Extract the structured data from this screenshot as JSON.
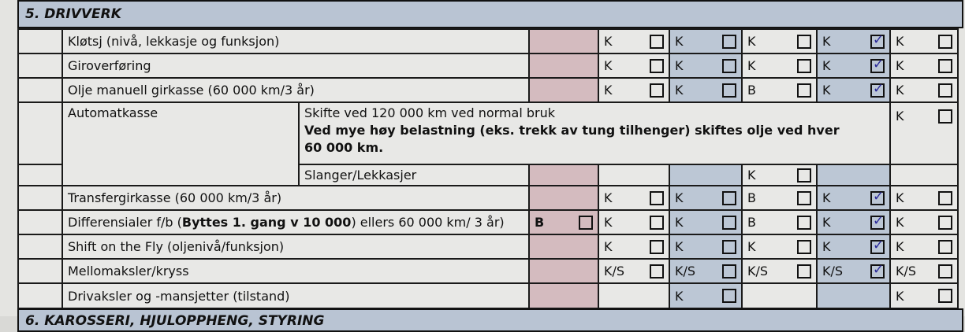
{
  "section_title": "5. DRIVVERK",
  "next_section_title": "6. KAROSSERI, HJULOPPHENG, STYRING",
  "rows": [
    {
      "label": "Kløtsj (nivå, lekkasje og funksjon)",
      "cols": [
        {
          "code": "K",
          "checked": false
        },
        {
          "code": "K",
          "checked": false
        },
        {
          "code": "K",
          "checked": false
        },
        {
          "code": "K",
          "checked": true
        },
        {
          "code": "K",
          "checked": false
        }
      ]
    },
    {
      "label": "Giroverføring",
      "cols": [
        {
          "code": "K",
          "checked": false
        },
        {
          "code": "K",
          "checked": false
        },
        {
          "code": "K",
          "checked": false
        },
        {
          "code": "K",
          "checked": true
        },
        {
          "code": "K",
          "checked": false
        }
      ]
    },
    {
      "label": "Olje manuell girkasse (60 000 km/3 år)",
      "cols": [
        {
          "code": "K",
          "checked": false
        },
        {
          "code": "K",
          "checked": false
        },
        {
          "code": "B",
          "checked": false
        },
        {
          "code": "K",
          "checked": true
        },
        {
          "code": "K",
          "checked": false
        }
      ]
    }
  ],
  "automat": {
    "label": "Automatkasse",
    "note1": "Skifte ved 120 000 km ved normal bruk",
    "note2": "Ved mye høy belastning (eks. trekk av tung tilhenger) skiftes olje ved hver 60 000 km.",
    "last_col": {
      "code": "K",
      "checked": false
    },
    "sub_label": "Slanger/Lekkasjer",
    "sub_cols": [
      null,
      null,
      {
        "code": "K",
        "checked": false
      },
      null,
      null
    ]
  },
  "rows2": [
    {
      "label": "Transfergirkasse (60 000 km/3 år)",
      "cols": [
        {
          "code": "K",
          "checked": false
        },
        {
          "code": "K",
          "checked": false
        },
        {
          "code": "B",
          "checked": false
        },
        {
          "code": "K",
          "checked": true
        },
        {
          "code": "K",
          "checked": false
        }
      ]
    },
    {
      "label_a": "Differensialer f/b (",
      "label_b": "Byttes 1. gang v 10 000",
      "label_c": ") ellers 60 000 km/ 3 år)",
      "pink": {
        "code": "B",
        "checked": false
      },
      "cols": [
        {
          "code": "K",
          "checked": false
        },
        {
          "code": "K",
          "checked": false
        },
        {
          "code": "B",
          "checked": false
        },
        {
          "code": "K",
          "checked": true
        },
        {
          "code": "K",
          "checked": false
        }
      ]
    },
    {
      "label": "Shift on the Fly (oljenivå/funksjon)",
      "cols": [
        {
          "code": "K",
          "checked": false
        },
        {
          "code": "K",
          "checked": false
        },
        {
          "code": "K",
          "checked": false
        },
        {
          "code": "K",
          "checked": true
        },
        {
          "code": "K",
          "checked": false
        }
      ]
    },
    {
      "label": "Mellomaksler/kryss",
      "cols": [
        {
          "code": "K/S",
          "checked": false
        },
        {
          "code": "K/S",
          "checked": false
        },
        {
          "code": "K/S",
          "checked": false
        },
        {
          "code": "K/S",
          "checked": true
        },
        {
          "code": "K/S",
          "checked": false
        }
      ]
    },
    {
      "label": "Drivaksler og -mansjetter (tilstand)",
      "cols": [
        null,
        {
          "code": "K",
          "checked": false
        },
        null,
        null,
        {
          "code": "K",
          "checked": false
        }
      ]
    }
  ]
}
